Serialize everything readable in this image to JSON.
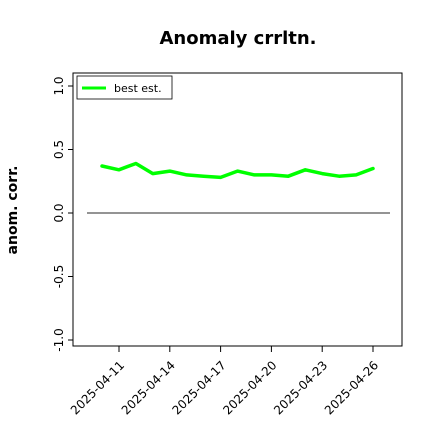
{
  "chart_data": {
    "type": "line",
    "title": "Anomaly crrltn.",
    "xlabel": "",
    "ylabel": "anom. corr.",
    "ylim": [
      -1.0,
      1.0
    ],
    "yticks": [
      "-1.0",
      "-0.5",
      "0.0",
      "0.5",
      "1.0"
    ],
    "x": [
      "2025-04-10",
      "2025-04-11",
      "2025-04-12",
      "2025-04-13",
      "2025-04-14",
      "2025-04-15",
      "2025-04-16",
      "2025-04-17",
      "2025-04-18",
      "2025-04-19",
      "2025-04-20",
      "2025-04-21",
      "2025-04-22",
      "2025-04-23",
      "2025-04-24",
      "2025-04-25",
      "2025-04-26"
    ],
    "xticks": [
      "2025-04-11",
      "2025-04-14",
      "2025-04-17",
      "2025-04-20",
      "2025-04-23",
      "2025-04-26"
    ],
    "series": [
      {
        "name": "best est.",
        "color": "#00ff00",
        "values": [
          0.37,
          0.34,
          0.39,
          0.31,
          0.33,
          0.3,
          0.29,
          0.28,
          0.33,
          0.3,
          0.3,
          0.29,
          0.34,
          0.31,
          0.29,
          0.3,
          0.35
        ]
      }
    ],
    "reference_line": {
      "y": 0.0,
      "color": "#555555"
    },
    "legend_position": "top-left",
    "grid": false
  }
}
